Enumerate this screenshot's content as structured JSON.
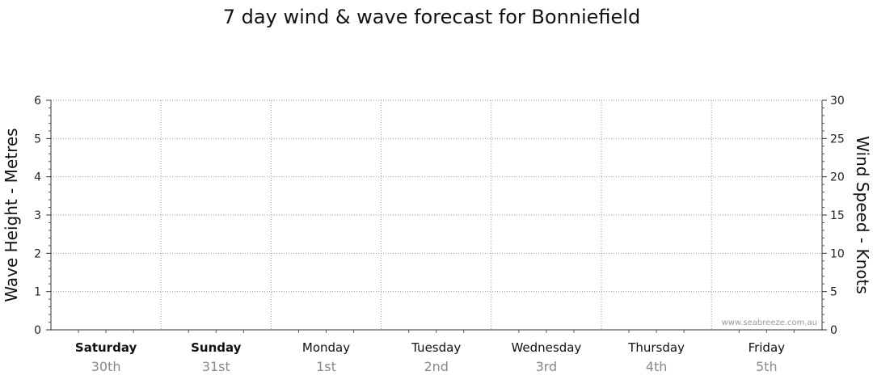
{
  "chart_data": {
    "type": "line",
    "title": "7 day wind & wave forecast for Bonniefield",
    "y_left_label": "Wave Height - Metres",
    "y_right_label": "Wind Speed - Knots",
    "y_left_range": [
      0,
      6
    ],
    "y_left_ticks": [
      "0",
      "1",
      "2",
      "3",
      "4",
      "5",
      "6"
    ],
    "y_right_range": [
      0,
      30
    ],
    "y_right_ticks": [
      "0",
      "5",
      "10",
      "15",
      "20",
      "25",
      "30"
    ],
    "grid": true,
    "days": [
      {
        "day": "Saturday",
        "date": "30th",
        "weekend": true
      },
      {
        "day": "Sunday",
        "date": "31st",
        "weekend": true
      },
      {
        "day": "Monday",
        "date": "1st",
        "weekend": false
      },
      {
        "day": "Tuesday",
        "date": "2nd",
        "weekend": false
      },
      {
        "day": "Wednesday",
        "date": "3rd",
        "weekend": false
      },
      {
        "day": "Thursday",
        "date": "4th",
        "weekend": false
      },
      {
        "day": "Friday",
        "date": "5th",
        "weekend": false
      }
    ],
    "series": [],
    "watermark": "www.seabreeze.com.au"
  }
}
